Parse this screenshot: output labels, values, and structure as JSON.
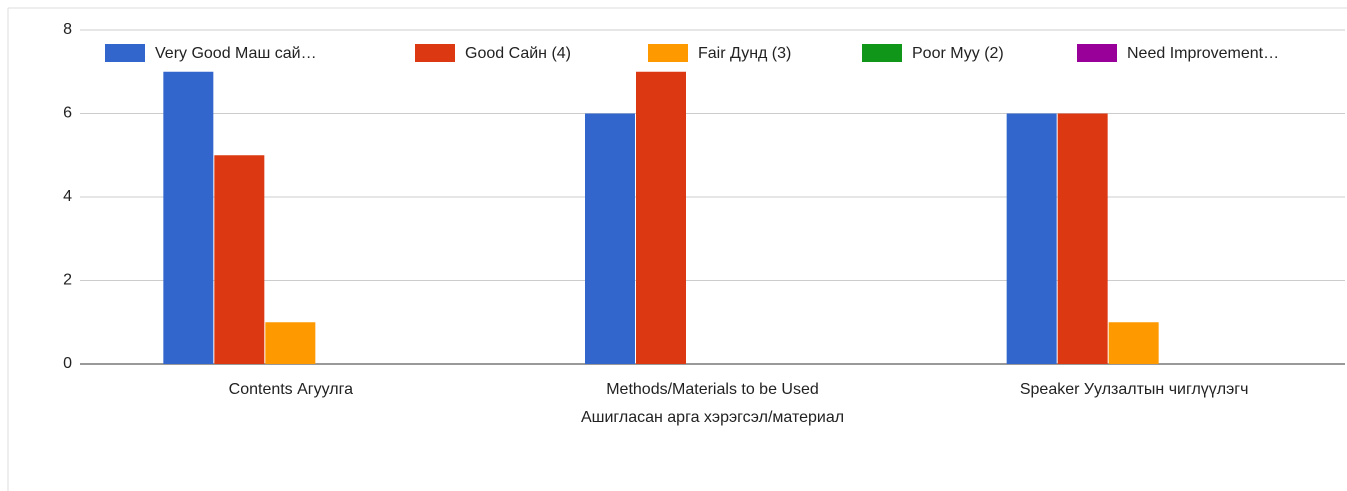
{
  "chart_data": {
    "type": "bar",
    "categories": [
      "Contents Агуулга",
      "Methods/Materials to be Used\nАшигласан арга хэрэгсэл/материал",
      "Speaker Уулзалтын чиглүүлэгч"
    ],
    "series": [
      {
        "name": "Very Good Маш сай…",
        "color": "#3366cc",
        "values": [
          7,
          6,
          6
        ]
      },
      {
        "name": "Good Сайн (4)",
        "color": "#dc3912",
        "values": [
          5,
          7,
          6
        ]
      },
      {
        "name": "Fair Дунд (3)",
        "color": "#ff9900",
        "values": [
          1,
          0,
          1
        ]
      },
      {
        "name": "Poor Муу (2)",
        "color": "#109618",
        "values": [
          0,
          0,
          0
        ]
      },
      {
        "name": "Need Improvement…",
        "color": "#990099",
        "values": [
          0,
          0,
          0
        ]
      }
    ],
    "ylim": [
      0,
      8
    ],
    "yticks": [
      0,
      2,
      4,
      6,
      8
    ],
    "grid": true,
    "legend": "top"
  }
}
